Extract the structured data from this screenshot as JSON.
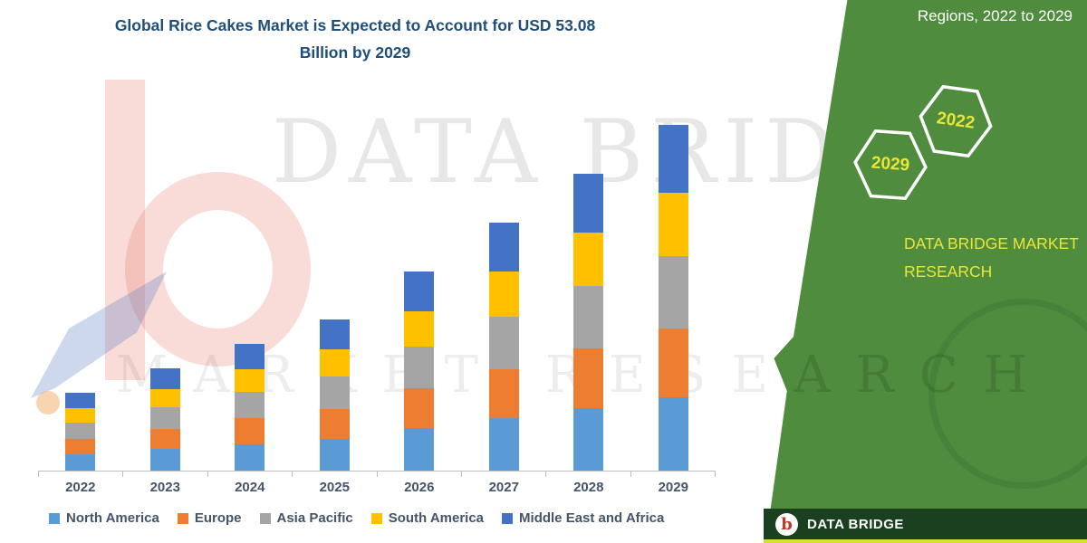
{
  "title": {
    "line1": "Global Rice Cakes Market is Expected to Account for USD 53.08",
    "line2": "Billion by 2029"
  },
  "side_panel": {
    "heading": "Regions, 2022 to 2029",
    "hexagon_labels": [
      "2029",
      "2022"
    ],
    "brand_line1": "DATA BRIDGE MARKET",
    "brand_line2": "RESEARCH",
    "panel_color": "#4F8C3E",
    "accent_yellow": "#E9E637"
  },
  "watermark": {
    "line1": "DATA BRIDGE",
    "line2": "MARKET RESEARCH"
  },
  "footer": {
    "brand": "DATA BRIDGE",
    "logo_letter": "b",
    "bar_color": "#1A4020",
    "strip_color": "#D9DF2A"
  },
  "chart_data": {
    "type": "bar",
    "stacked": true,
    "title": "Global Rice Cakes Market is Expected to Account for USD 53.08 Billion by 2029",
    "value_unit": "USD Billion",
    "categories": [
      "2022",
      "2023",
      "2024",
      "2025",
      "2026",
      "2027",
      "2028",
      "2029"
    ],
    "series": [
      {
        "name": "North America",
        "color": "#5B9BD5",
        "values": [
          2.5,
          3.3,
          4.1,
          4.9,
          6.5,
          8.0,
          9.6,
          11.2
        ]
      },
      {
        "name": "Europe",
        "color": "#ED7D31",
        "values": [
          2.4,
          3.1,
          3.9,
          4.6,
          6.1,
          7.6,
          9.1,
          10.6
        ]
      },
      {
        "name": "Asia Pacific",
        "color": "#A5A5A5",
        "values": [
          2.5,
          3.3,
          4.1,
          4.9,
          6.4,
          8.0,
          9.6,
          11.2
        ]
      },
      {
        "name": "South America",
        "color": "#FFC000",
        "values": [
          2.2,
          2.8,
          3.5,
          4.2,
          5.5,
          6.9,
          8.2,
          9.6
        ]
      },
      {
        "name": "Middle East and Africa",
        "color": "#4472C4",
        "values": [
          2.4,
          3.2,
          3.8,
          4.6,
          6.1,
          7.6,
          9.1,
          10.48
        ]
      }
    ],
    "totals": [
      12.0,
      15.7,
      19.4,
      23.2,
      30.6,
      38.1,
      45.6,
      53.08
    ],
    "ylim": [
      0,
      55
    ],
    "grid": false,
    "legend_position": "bottom",
    "axis_labels_visible": {
      "x": true,
      "y": false
    }
  }
}
